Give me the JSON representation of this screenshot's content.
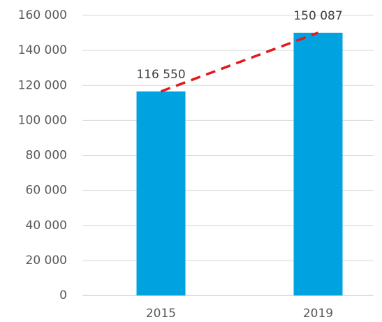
{
  "chart_data": {
    "type": "bar",
    "categories": [
      "2015",
      "2019"
    ],
    "values": [
      116550,
      150087
    ],
    "value_labels": [
      "116 550",
      "150 087"
    ],
    "color": "#00a2e0",
    "trend_line": {
      "color": "#e3191b",
      "dashed": true
    },
    "ylim": [
      0,
      160000
    ],
    "yticks": [
      0,
      {
        "value": 20000,
        "label": "20 000"
      },
      {
        "value": 40000,
        "label": "40 000"
      },
      {
        "value": 60000,
        "label": "60 000"
      },
      {
        "value": 80000,
        "label": "80 000"
      },
      {
        "value": 100000,
        "label": "100 000"
      },
      {
        "value": 120000,
        "label": "120 000"
      },
      {
        "value": 140000,
        "label": "140 000"
      },
      {
        "value": 160000,
        "label": "160 000"
      }
    ],
    "grid": true
  }
}
